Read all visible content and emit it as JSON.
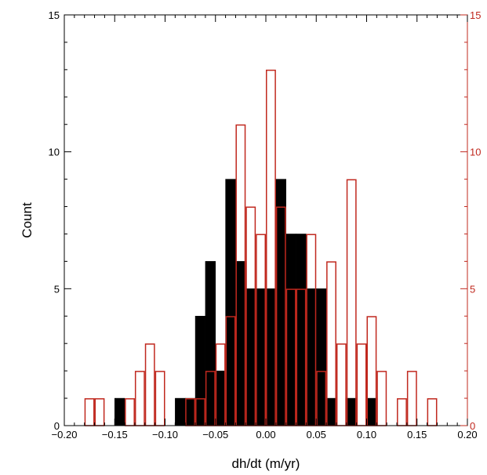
{
  "chart_data": {
    "type": "bar",
    "xlabel": "dh/dt (m/yr)",
    "ylabel": "Count",
    "xlim": [
      -0.2,
      0.2
    ],
    "ylim": [
      0,
      15
    ],
    "bin_width": 0.01,
    "x_ticks": [
      "−0.20",
      "−0.15",
      "−0.10",
      "−0.05",
      "0.00",
      "0.05",
      "0.10",
      "0.15",
      "0.20"
    ],
    "y_ticks_left": [
      "0",
      "5",
      "10",
      "15"
    ],
    "y_ticks_right": [
      "0",
      "5",
      "10",
      "15"
    ],
    "grid": false,
    "colors": {
      "filled": "#000000",
      "outline": "#c0281e",
      "axes": "#000000",
      "right_axis": "#c0281e"
    },
    "series": [
      {
        "style": "filled",
        "bins": [
          {
            "x": -0.145,
            "y": 1
          },
          {
            "x": -0.085,
            "y": 1
          },
          {
            "x": -0.075,
            "y": 1
          },
          {
            "x": -0.065,
            "y": 4
          },
          {
            "x": -0.055,
            "y": 6
          },
          {
            "x": -0.045,
            "y": 2
          },
          {
            "x": -0.035,
            "y": 9
          },
          {
            "x": -0.025,
            "y": 6
          },
          {
            "x": -0.015,
            "y": 5
          },
          {
            "x": -0.005,
            "y": 5
          },
          {
            "x": 0.005,
            "y": 5
          },
          {
            "x": 0.015,
            "y": 9
          },
          {
            "x": 0.025,
            "y": 7
          },
          {
            "x": 0.035,
            "y": 7
          },
          {
            "x": 0.045,
            "y": 5
          },
          {
            "x": 0.055,
            "y": 5
          },
          {
            "x": 0.065,
            "y": 1
          },
          {
            "x": 0.085,
            "y": 1
          },
          {
            "x": 0.105,
            "y": 1
          }
        ]
      },
      {
        "style": "outline",
        "bins": [
          {
            "x": -0.175,
            "y": 1
          },
          {
            "x": -0.165,
            "y": 1
          },
          {
            "x": -0.135,
            "y": 1
          },
          {
            "x": -0.125,
            "y": 2
          },
          {
            "x": -0.115,
            "y": 3
          },
          {
            "x": -0.105,
            "y": 2
          },
          {
            "x": -0.075,
            "y": 1
          },
          {
            "x": -0.065,
            "y": 1
          },
          {
            "x": -0.055,
            "y": 2
          },
          {
            "x": -0.045,
            "y": 3
          },
          {
            "x": -0.035,
            "y": 4
          },
          {
            "x": -0.025,
            "y": 11
          },
          {
            "x": -0.015,
            "y": 8
          },
          {
            "x": -0.005,
            "y": 7
          },
          {
            "x": 0.005,
            "y": 13
          },
          {
            "x": 0.015,
            "y": 8
          },
          {
            "x": 0.025,
            "y": 5
          },
          {
            "x": 0.035,
            "y": 5
          },
          {
            "x": 0.045,
            "y": 7
          },
          {
            "x": 0.055,
            "y": 2
          },
          {
            "x": 0.065,
            "y": 6
          },
          {
            "x": 0.075,
            "y": 3
          },
          {
            "x": 0.085,
            "y": 9
          },
          {
            "x": 0.095,
            "y": 3
          },
          {
            "x": 0.105,
            "y": 4
          },
          {
            "x": 0.115,
            "y": 2
          },
          {
            "x": 0.135,
            "y": 1
          },
          {
            "x": 0.145,
            "y": 2
          },
          {
            "x": 0.165,
            "y": 1
          }
        ]
      }
    ]
  }
}
